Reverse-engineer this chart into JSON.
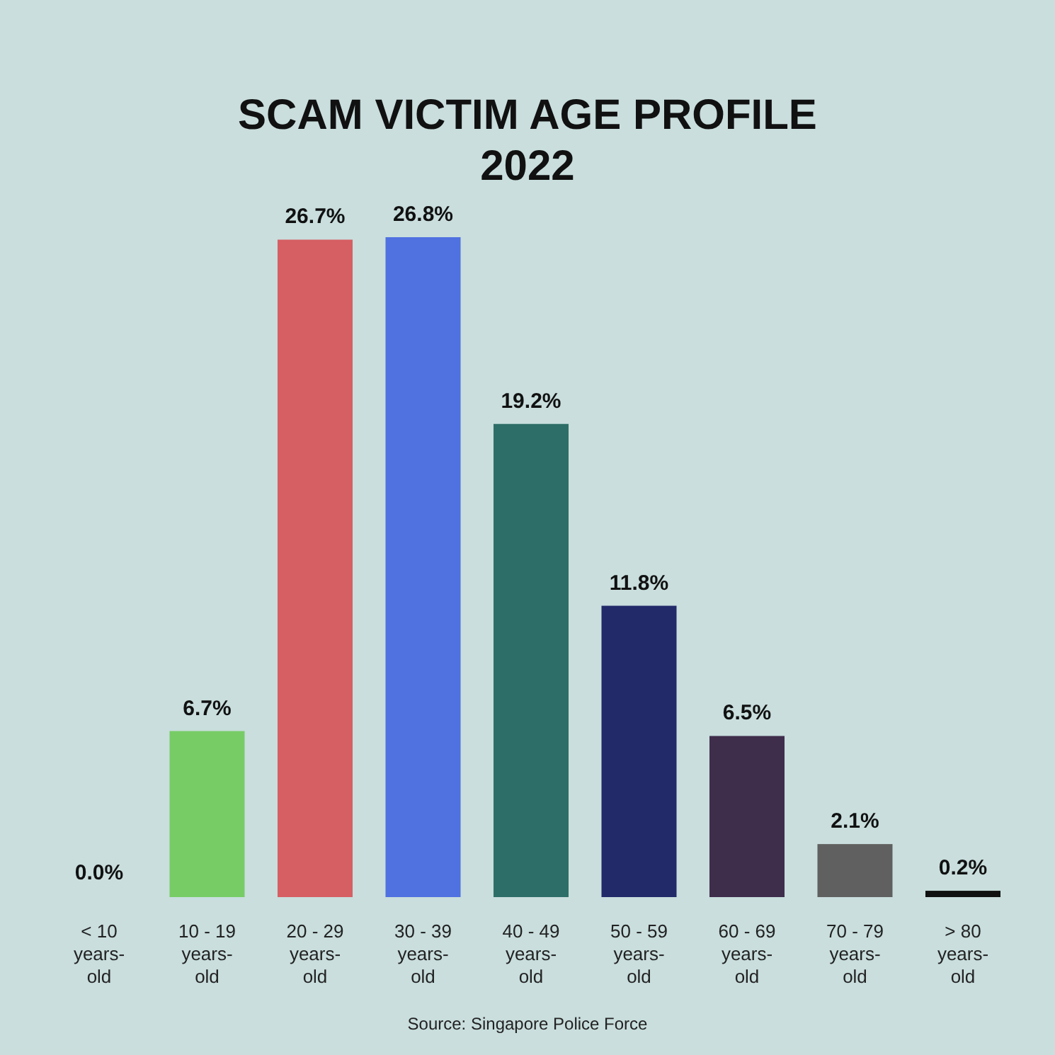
{
  "chart_data": {
    "type": "bar",
    "title": "SCAM VICTIM AGE PROFILE",
    "subtitle": "2022",
    "categories": [
      "< 10 years-old",
      "10 - 19 years-old",
      "20 - 29 years-old",
      "30 - 39 years-old",
      "40 - 49 years-old",
      "50 - 59 years-old",
      "60 - 69 years-old",
      "70 - 79 years-old",
      "> 80 years-old"
    ],
    "values": [
      0.0,
      6.7,
      26.7,
      26.8,
      19.2,
      11.8,
      6.5,
      2.1,
      0.2
    ],
    "colors": [
      "#222222",
      "#77cc66",
      "#d65f63",
      "#5071e0",
      "#2e6e68",
      "#222a6a",
      "#3f2d4c",
      "#606060",
      "#111111"
    ],
    "value_labels": [
      "0.0%",
      "6.7%",
      "26.7%",
      "26.8%",
      "19.2%",
      "11.8%",
      "6.5%",
      "2.1%",
      "0.2%"
    ],
    "annotations": [
      "Source: Singapore Police Force"
    ]
  }
}
